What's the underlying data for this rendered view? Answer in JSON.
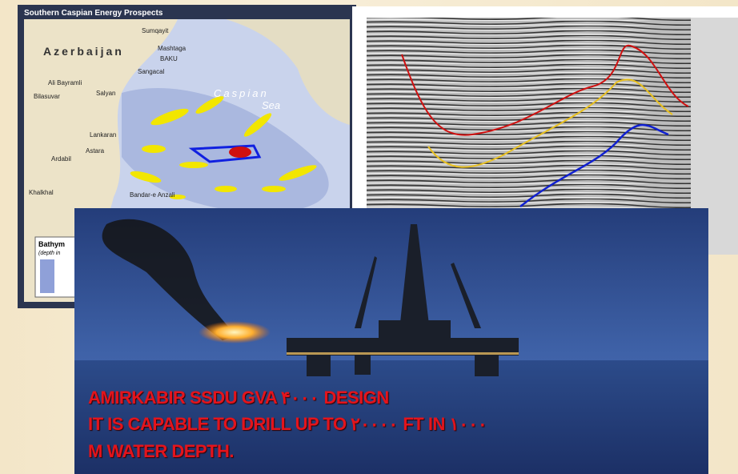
{
  "map": {
    "title": "Southern Caspian Energy Prospects",
    "labels": [
      "Azerbaijan",
      "Caspian",
      "Sea",
      "Sumqayit",
      "Mashtaga",
      "BAKU",
      "Sangacal",
      "Ali Bayramli",
      "Salyan",
      "Bilasuvar",
      "Lankaran",
      "Astara",
      "Ardabil",
      "Khalkhal",
      "Bandar-e Anzali",
      "Bathym",
      "(depth in"
    ]
  },
  "caption": {
    "lines": [
      "AMIRKABIR SSDU GVA ۴۰۰۰ DESIGN",
      "IT IS CAPABLE TO DRILL UP TO ۲۰۰۰۰ FT  IN ۱۰۰۰",
      "M WATER DEPTH."
    ]
  }
}
